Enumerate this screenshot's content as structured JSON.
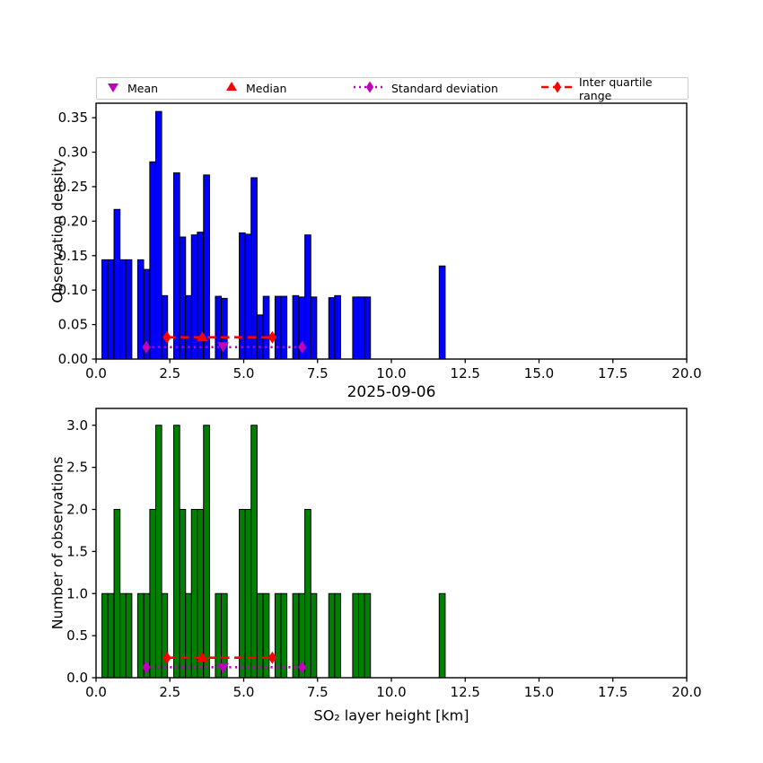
{
  "figure": {
    "title": "2025-09-06",
    "background": "#FFFFFF"
  },
  "legend": {
    "position": "top",
    "items": [
      {
        "label": "Mean",
        "marker": "triangle-down",
        "color": "#BF00BF",
        "line": "none"
      },
      {
        "label": "Median",
        "marker": "triangle-up",
        "color": "#FF0000",
        "line": "none"
      },
      {
        "label": "Standard deviation",
        "marker": "diamond",
        "color": "#BF00BF",
        "line": "dotted"
      },
      {
        "label": "Inter quartile range",
        "marker": "diamond",
        "color": "#FF0000",
        "line": "dashed"
      }
    ]
  },
  "chart_data": [
    {
      "type": "bar",
      "id": "density-histogram",
      "ylabel": "Observation density",
      "xlim": [
        0,
        20
      ],
      "ylim": [
        0,
        0.371
      ],
      "grid": false,
      "bar_width": 0.202,
      "bar_color": "#0000FF",
      "bar_edge_color": "#000000",
      "xticks": {
        "values": [
          0,
          2.5,
          5,
          7.5,
          10,
          12.5,
          15,
          17.5,
          20
        ],
        "labels": [
          "0.0",
          "2.5",
          "5.0",
          "7.5",
          "10.0",
          "12.5",
          "15.0",
          "17.5",
          "20.0"
        ]
      },
      "yticks": {
        "values": [
          0,
          0.05,
          0.1,
          0.15,
          0.2,
          0.25,
          0.3,
          0.35
        ],
        "labels": [
          "0.00",
          "0.05",
          "0.10",
          "0.15",
          "0.20",
          "0.25",
          "0.30",
          "0.35"
        ]
      },
      "x": [
        0.2,
        0.4,
        0.61,
        0.81,
        1.01,
        1.41,
        1.62,
        1.82,
        2.02,
        2.22,
        2.63,
        2.83,
        3.03,
        3.23,
        3.43,
        3.64,
        4.04,
        4.24,
        4.85,
        5.05,
        5.25,
        5.45,
        5.66,
        6.06,
        6.26,
        6.66,
        6.87,
        7.07,
        7.27,
        7.88,
        8.08,
        8.69,
        8.89,
        9.09,
        11.62
      ],
      "values": [
        0.144,
        0.144,
        0.217,
        0.144,
        0.144,
        0.144,
        0.13,
        0.286,
        0.359,
        0.092,
        0.27,
        0.177,
        0.092,
        0.18,
        0.184,
        0.267,
        0.091,
        0.088,
        0.183,
        0.181,
        0.263,
        0.064,
        0.091,
        0.091,
        0.091,
        0.092,
        0.09,
        0.18,
        0.09,
        0.089,
        0.092,
        0.09,
        0.09,
        0.09,
        0.135
      ],
      "markers": {
        "mean": 4.3,
        "median": 3.6,
        "std": [
          1.7,
          6.98
        ],
        "iqr": [
          2.4,
          5.97
        ],
        "mean_y": 0.0185,
        "median_y": 0.0316,
        "std_y": 0.0173,
        "iqr_y": 0.0316
      }
    },
    {
      "type": "bar",
      "id": "count-histogram",
      "title": "2025-09-06",
      "ylabel": "Number of observations",
      "xlabel": "SO₂ layer height [km]",
      "xlim": [
        0,
        20
      ],
      "ylim": [
        0,
        3.2
      ],
      "grid": false,
      "bar_width": 0.202,
      "bar_color": "#008000",
      "bar_edge_color": "#000000",
      "xticks": {
        "values": [
          0,
          2.5,
          5,
          7.5,
          10,
          12.5,
          15,
          17.5,
          20
        ],
        "labels": [
          "0.0",
          "2.5",
          "5.0",
          "7.5",
          "10.0",
          "12.5",
          "15.0",
          "17.5",
          "20.0"
        ]
      },
      "yticks": {
        "values": [
          0,
          0.5,
          1.0,
          1.5,
          2.0,
          2.5,
          3.0
        ],
        "labels": [
          "0.0",
          "0.5",
          "1.0",
          "1.5",
          "2.0",
          "2.5",
          "3.0"
        ]
      },
      "x": [
        0.2,
        0.4,
        0.61,
        0.81,
        1.01,
        1.41,
        1.62,
        1.82,
        2.02,
        2.22,
        2.63,
        2.83,
        3.03,
        3.23,
        3.43,
        3.64,
        4.04,
        4.24,
        4.85,
        5.05,
        5.25,
        5.45,
        5.66,
        6.06,
        6.26,
        6.66,
        6.87,
        7.07,
        7.27,
        7.88,
        8.08,
        8.69,
        8.89,
        9.09,
        11.62
      ],
      "values": [
        1,
        1,
        2,
        1,
        1,
        1,
        1,
        2,
        3,
        1,
        3,
        2,
        1,
        2,
        2,
        3,
        1,
        1,
        2,
        2,
        3,
        1,
        1,
        1,
        1,
        1,
        1,
        2,
        1,
        1,
        1,
        1,
        1,
        1,
        1
      ],
      "markers": {
        "mean": 4.3,
        "median": 3.6,
        "std": [
          1.7,
          6.98
        ],
        "iqr": [
          2.4,
          5.97
        ],
        "mean_y": 0.125,
        "median_y": 0.238,
        "std_y": 0.125,
        "iqr_y": 0.238
      }
    }
  ],
  "colors": {
    "mean": "#BF00BF",
    "median": "#FF0000",
    "std": "#BF00BF",
    "iqr": "#FF0000",
    "axis": "#000000",
    "legend_border": "#CCCCCC"
  }
}
